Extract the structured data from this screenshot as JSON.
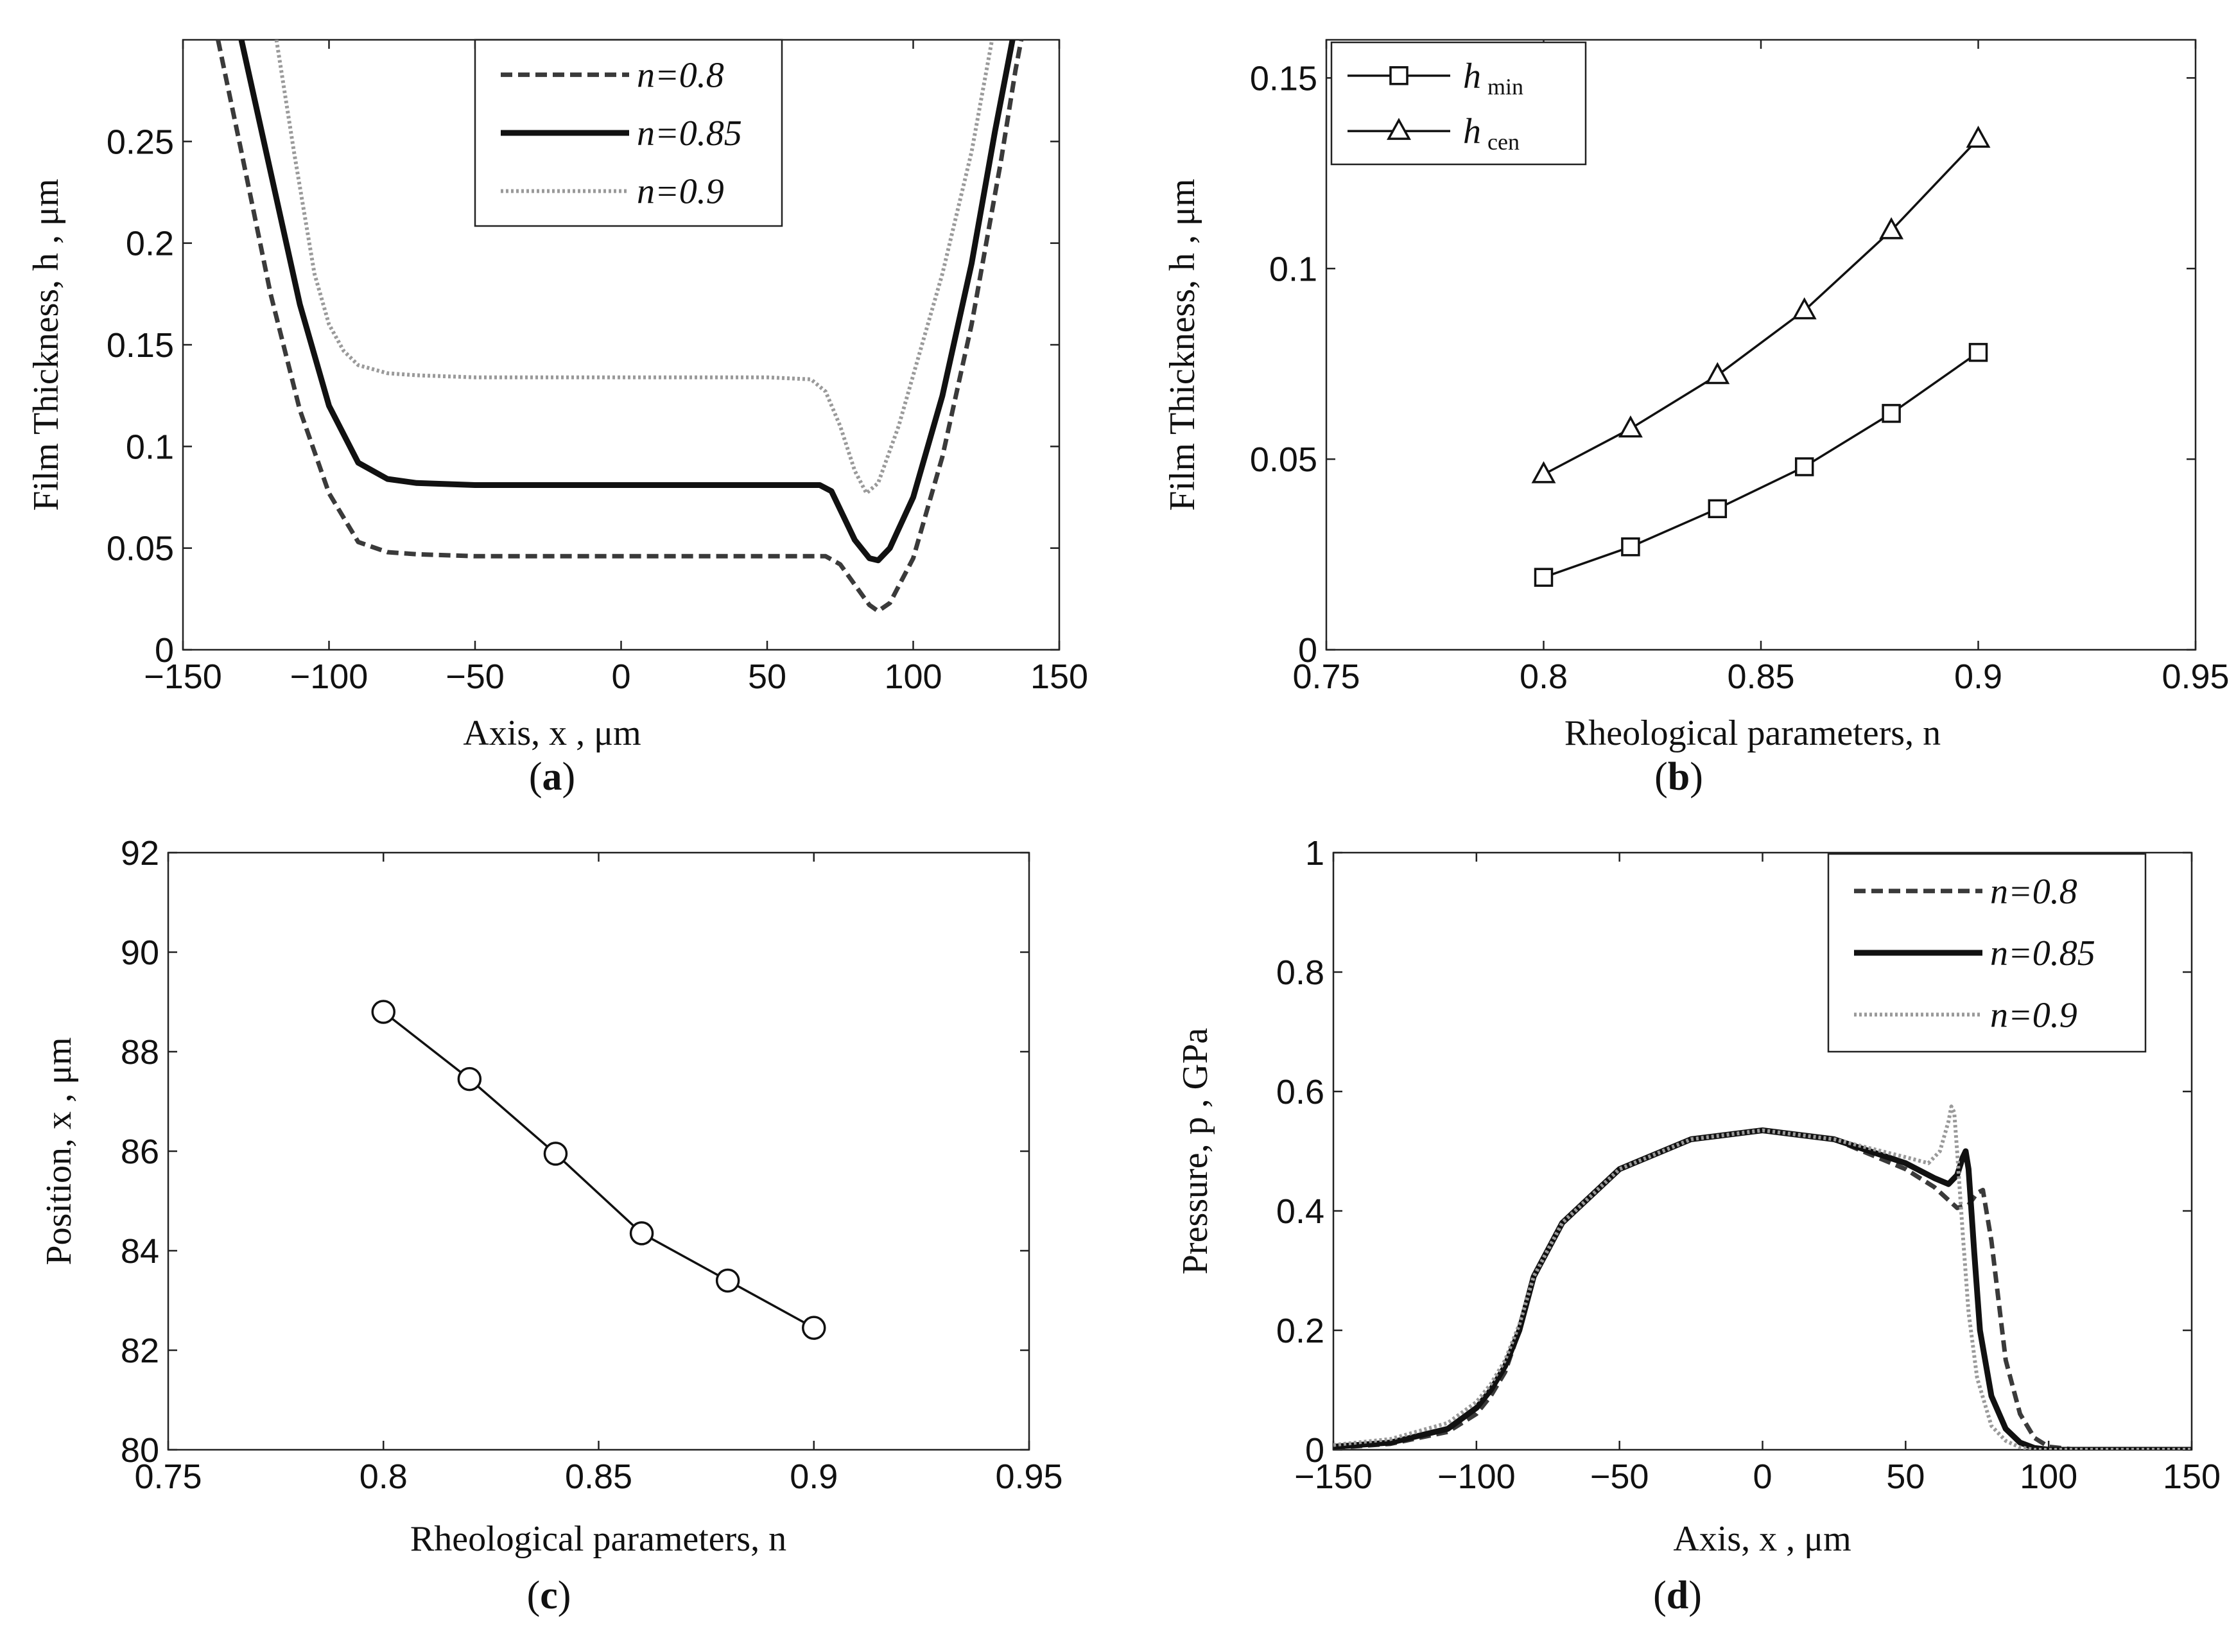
{
  "colors": {
    "dark": "#111111",
    "medium": "#3a3a3a",
    "light": "#9a9a9a"
  },
  "chart_data": [
    {
      "id": "a",
      "caption": "a",
      "type": "line",
      "xlabel": "Axis, x , μm",
      "ylabel": "Film Thickness, h , μm",
      "xlim": [
        -150,
        150
      ],
      "ylim": [
        0,
        0.3
      ],
      "xticks": [
        -150,
        -100,
        -50,
        0,
        50,
        100,
        150
      ],
      "yticks": [
        0,
        0.05,
        0.1,
        0.15,
        0.2,
        0.25
      ],
      "xtick_labels": [
        "−150",
        "−100",
        "−50",
        "0",
        "50",
        "100",
        "150"
      ],
      "ytick_labels": [
        "0",
        "0.05",
        "0.1",
        "0.15",
        "0.2",
        "0.25"
      ],
      "legend_position": "top-center",
      "series": [
        {
          "name": "n=0.8",
          "style": "dashed",
          "x": [
            -138,
            -130,
            -120,
            -110,
            -100,
            -90,
            -80,
            -70,
            -50,
            0,
            50,
            70,
            75,
            80,
            85,
            88,
            92,
            100,
            110,
            120,
            130,
            135,
            137
          ],
          "y": [
            0.3,
            0.245,
            0.175,
            0.118,
            0.077,
            0.053,
            0.048,
            0.047,
            0.046,
            0.046,
            0.046,
            0.046,
            0.042,
            0.032,
            0.022,
            0.019,
            0.023,
            0.045,
            0.095,
            0.16,
            0.24,
            0.285,
            0.3
          ]
        },
        {
          "name": "n=0.85",
          "style": "solid",
          "x": [
            -130,
            -120,
            -110,
            -100,
            -90,
            -80,
            -70,
            -50,
            0,
            50,
            68,
            72,
            76,
            80,
            85,
            88,
            92,
            100,
            110,
            120,
            128,
            134
          ],
          "y": [
            0.3,
            0.235,
            0.17,
            0.12,
            0.092,
            0.084,
            0.082,
            0.081,
            0.081,
            0.081,
            0.081,
            0.078,
            0.066,
            0.054,
            0.045,
            0.044,
            0.05,
            0.075,
            0.125,
            0.19,
            0.255,
            0.3
          ]
        },
        {
          "name": "n=0.9",
          "style": "dotted",
          "x": [
            -118,
            -112,
            -105,
            -100,
            -95,
            -90,
            -80,
            -70,
            -50,
            0,
            50,
            65,
            70,
            75,
            80,
            84,
            88,
            95,
            100,
            110,
            120,
            127
          ],
          "y": [
            0.3,
            0.245,
            0.185,
            0.16,
            0.147,
            0.14,
            0.136,
            0.135,
            0.134,
            0.134,
            0.134,
            0.133,
            0.127,
            0.11,
            0.088,
            0.077,
            0.082,
            0.11,
            0.135,
            0.185,
            0.245,
            0.3
          ]
        }
      ]
    },
    {
      "id": "b",
      "caption": "b",
      "type": "line",
      "xlabel": "Rheological parameters,  n",
      "ylabel": "Film Thickness, h , μm",
      "xlim": [
        0.75,
        0.95
      ],
      "ylim": [
        0,
        0.16
      ],
      "xticks": [
        0.75,
        0.8,
        0.85,
        0.9,
        0.95
      ],
      "yticks": [
        0,
        0.05,
        0.1,
        0.15
      ],
      "xtick_labels": [
        "0.75",
        "0.8",
        "0.85",
        "0.9",
        "0.95"
      ],
      "ytick_labels": [
        "0",
        "0.05",
        "0.1",
        "0.15"
      ],
      "legend_position": "top-left",
      "series": [
        {
          "name_main": "h",
          "name_sub": "min",
          "marker": "square",
          "x": [
            0.8,
            0.82,
            0.84,
            0.86,
            0.88,
            0.9
          ],
          "y": [
            0.019,
            0.027,
            0.037,
            0.048,
            0.062,
            0.078
          ]
        },
        {
          "name_main": "h",
          "name_sub": "cen",
          "marker": "triangle",
          "x": [
            0.8,
            0.82,
            0.84,
            0.86,
            0.88,
            0.9
          ],
          "y": [
            0.046,
            0.058,
            0.072,
            0.089,
            0.11,
            0.134
          ]
        }
      ]
    },
    {
      "id": "c",
      "caption": "c",
      "type": "line",
      "xlabel": "Rheological parameters, n",
      "ylabel": "Position, x , μm",
      "xlim": [
        0.75,
        0.95
      ],
      "ylim": [
        80,
        92
      ],
      "xticks": [
        0.75,
        0.8,
        0.85,
        0.9,
        0.95
      ],
      "yticks": [
        80,
        82,
        84,
        86,
        88,
        90,
        92
      ],
      "xtick_labels": [
        "0.75",
        "0.8",
        "0.85",
        "0.9",
        "0.95"
      ],
      "ytick_labels": [
        "80",
        "82",
        "84",
        "86",
        "88",
        "90",
        "92"
      ],
      "series": [
        {
          "name": "",
          "marker": "circle",
          "x": [
            0.8,
            0.82,
            0.84,
            0.86,
            0.88,
            0.9
          ],
          "y": [
            88.8,
            87.45,
            85.95,
            84.35,
            83.4,
            82.45
          ]
        }
      ]
    },
    {
      "id": "d",
      "caption": "d",
      "type": "line",
      "xlabel": "Axis, x , μm",
      "ylabel": "Pressure, p , GPa",
      "xlim": [
        -150,
        150
      ],
      "ylim": [
        0,
        1
      ],
      "xticks": [
        -150,
        -100,
        -50,
        0,
        50,
        100,
        150
      ],
      "yticks": [
        0,
        0.2,
        0.4,
        0.6,
        0.8,
        1
      ],
      "xtick_labels": [
        "−150",
        "−100",
        "−50",
        "0",
        "50",
        "100",
        "150"
      ],
      "ytick_labels": [
        "0",
        "0.2",
        "0.4",
        "0.6",
        "0.8",
        "1"
      ],
      "legend_position": "top-right",
      "series": [
        {
          "name": "n=0.8",
          "style": "dashed",
          "x": [
            -150,
            -130,
            -110,
            -100,
            -95,
            -90,
            -85,
            -80,
            -70,
            -50,
            -25,
            0,
            25,
            50,
            60,
            68,
            72,
            75,
            77,
            80,
            85,
            90,
            95,
            100,
            110,
            150
          ],
          "y": [
            0.003,
            0.01,
            0.03,
            0.06,
            0.09,
            0.13,
            0.2,
            0.29,
            0.38,
            0.47,
            0.52,
            0.535,
            0.52,
            0.47,
            0.44,
            0.405,
            0.41,
            0.43,
            0.435,
            0.35,
            0.15,
            0.06,
            0.02,
            0.005,
            0,
            0
          ]
        },
        {
          "name": "n=0.85",
          "style": "solid",
          "x": [
            -150,
            -130,
            -110,
            -100,
            -95,
            -90,
            -85,
            -80,
            -70,
            -50,
            -25,
            0,
            25,
            50,
            60,
            65,
            68,
            70,
            71,
            72,
            74,
            76,
            80,
            85,
            90,
            95,
            100,
            110,
            150
          ],
          "y": [
            0.005,
            0.012,
            0.035,
            0.07,
            0.1,
            0.14,
            0.2,
            0.29,
            0.38,
            0.47,
            0.52,
            0.535,
            0.52,
            0.48,
            0.455,
            0.445,
            0.46,
            0.49,
            0.5,
            0.47,
            0.33,
            0.2,
            0.09,
            0.035,
            0.012,
            0.003,
            0,
            0,
            0
          ]
        },
        {
          "name": "n=0.9",
          "style": "dotted",
          "x": [
            -150,
            -130,
            -110,
            -100,
            -95,
            -90,
            -85,
            -80,
            -70,
            -50,
            -25,
            0,
            25,
            50,
            58,
            62,
            65,
            66,
            67,
            68,
            70,
            72,
            75,
            80,
            85,
            90,
            95,
            100,
            150
          ],
          "y": [
            0.008,
            0.018,
            0.045,
            0.08,
            0.11,
            0.15,
            0.21,
            0.29,
            0.38,
            0.47,
            0.52,
            0.535,
            0.52,
            0.49,
            0.48,
            0.5,
            0.55,
            0.575,
            0.565,
            0.5,
            0.36,
            0.23,
            0.12,
            0.04,
            0.015,
            0.004,
            0,
            0,
            0
          ]
        }
      ]
    }
  ]
}
